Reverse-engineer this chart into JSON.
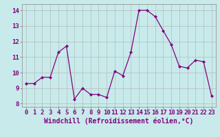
{
  "x": [
    0,
    1,
    2,
    3,
    4,
    5,
    6,
    7,
    8,
    9,
    10,
    11,
    12,
    13,
    14,
    15,
    16,
    17,
    18,
    19,
    20,
    21,
    22,
    23
  ],
  "y": [
    9.3,
    9.3,
    9.7,
    9.7,
    11.3,
    11.7,
    8.3,
    9.0,
    8.6,
    8.6,
    8.4,
    10.1,
    9.8,
    11.3,
    14.0,
    14.0,
    13.6,
    12.7,
    11.8,
    10.4,
    10.3,
    10.8,
    10.7,
    8.5
  ],
  "line_color": "#800080",
  "marker_color": "#800080",
  "bg_color": "#c8eaea",
  "grid_color": "#aaaaaa",
  "xlabel": "Windchill (Refroidissement éolien,°C)",
  "xlabel_color": "#800080",
  "ylim": [
    7.8,
    14.4
  ],
  "xlim": [
    -0.5,
    23.5
  ],
  "yticks": [
    8,
    9,
    10,
    11,
    12,
    13,
    14
  ],
  "xticks": [
    0,
    1,
    2,
    3,
    4,
    5,
    6,
    7,
    8,
    9,
    10,
    11,
    12,
    13,
    14,
    15,
    16,
    17,
    18,
    19,
    20,
    21,
    22,
    23
  ],
  "tick_fontsize": 6.5,
  "xlabel_fontsize": 7.0,
  "figwidth": 3.2,
  "figheight": 2.0,
  "dpi": 100
}
